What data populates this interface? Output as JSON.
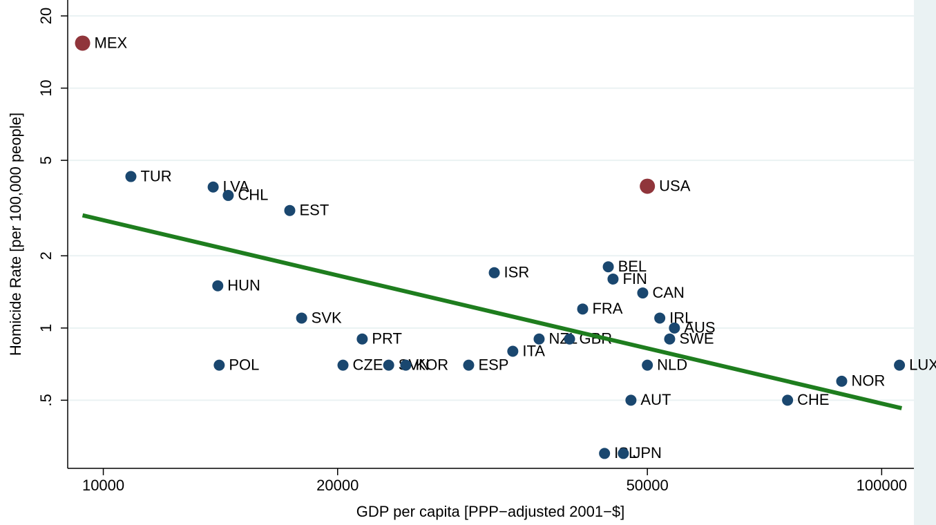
{
  "chart_data": {
    "type": "scatter",
    "xlabel": "GDP per capita [PPP−adjusted 2001−$]",
    "ylabel": "Homicide Rate [per 100,000 people]",
    "xscale": "log",
    "yscale": "log",
    "grid": true,
    "xlim": [
      9000,
      110000
    ],
    "ylim": [
      0.26,
      23.3
    ],
    "xticks": [
      10000,
      20000,
      50000,
      100000
    ],
    "yticks": [
      20,
      10,
      5,
      2,
      1,
      {
        "value": 0.5,
        "label": ".5"
      }
    ],
    "points": {
      "labels": [
        "MEX",
        "TUR",
        "LVA",
        "CHL",
        "EST",
        "HUN",
        "POL",
        "SVK",
        "PRT",
        "CZE",
        "SVN",
        "KOR",
        "ESP",
        "ISR",
        "ITA",
        "NZL",
        "GBR",
        "FRA",
        "BEL",
        "FIN",
        "ISL",
        "JPN",
        "AUT",
        "CAN",
        "USA",
        "NLD",
        "IRL",
        "AUS",
        "SWE",
        "CHE",
        "NOR",
        "LUX"
      ],
      "x": [
        9405,
        10850,
        13840,
        14470,
        17360,
        14030,
        14090,
        17980,
        21510,
        20320,
        23260,
        24470,
        29470,
        31790,
        33580,
        36300,
        39720,
        41290,
        44540,
        45170,
        44050,
        46570,
        47630,
        49320,
        50000,
        50000,
        51870,
        54170,
        53410,
        75700,
        88850,
        105400
      ],
      "y": [
        15.4,
        4.28,
        3.87,
        3.57,
        3.09,
        1.5,
        0.7,
        1.1,
        0.9,
        0.7,
        0.7,
        0.7,
        0.7,
        1.7,
        0.8,
        0.9,
        0.9,
        1.2,
        1.8,
        1.6,
        0.3,
        0.3,
        0.5,
        1.4,
        3.9,
        0.7,
        1.1,
        1.0,
        0.9,
        0.5,
        0.6,
        0.7
      ],
      "colors": [
        "#90353b",
        "#1a476f",
        "#1a476f",
        "#1a476f",
        "#1a476f",
        "#1a476f",
        "#1a476f",
        "#1a476f",
        "#1a476f",
        "#1a476f",
        "#1a476f",
        "#1a476f",
        "#1a476f",
        "#1a476f",
        "#1a476f",
        "#1a476f",
        "#1a476f",
        "#1a476f",
        "#1a476f",
        "#1a476f",
        "#1a476f",
        "#1a476f",
        "#1a476f",
        "#1a476f",
        "#90353b",
        "#1a476f",
        "#1a476f",
        "#1a476f",
        "#1a476f",
        "#1a476f",
        "#1a476f",
        "#1a476f"
      ],
      "sizes": [
        11,
        8,
        8,
        8,
        8,
        8,
        8,
        8,
        8,
        8,
        8,
        8,
        8,
        8,
        8,
        8,
        8,
        8,
        8,
        8,
        8,
        8,
        8,
        8,
        11,
        8,
        8,
        8,
        8,
        8,
        8,
        8
      ]
    },
    "fit_line": {
      "x": [
        9405,
        106100
      ],
      "y": [
        2.95,
        0.463
      ],
      "color": "#1e7d1e"
    }
  }
}
